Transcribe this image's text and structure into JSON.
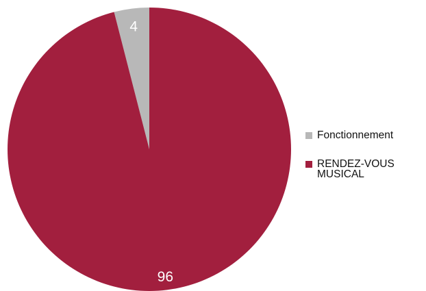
{
  "chart_data": {
    "type": "pie",
    "categories": [
      "Fonctionnement",
      "RENDEZ-VOUS MUSICAL"
    ],
    "values": [
      4,
      96
    ],
    "colors": [
      "#b8b8b8",
      "#a21f3e"
    ],
    "data_labels": [
      "4",
      "96"
    ],
    "legend": {
      "placement": "right",
      "entries": [
        {
          "label": "Fonctionnement",
          "color": "#b8b8b8"
        },
        {
          "label": "RENDEZ-VOUS MUSICAL",
          "color": "#a21f3e"
        }
      ]
    }
  }
}
